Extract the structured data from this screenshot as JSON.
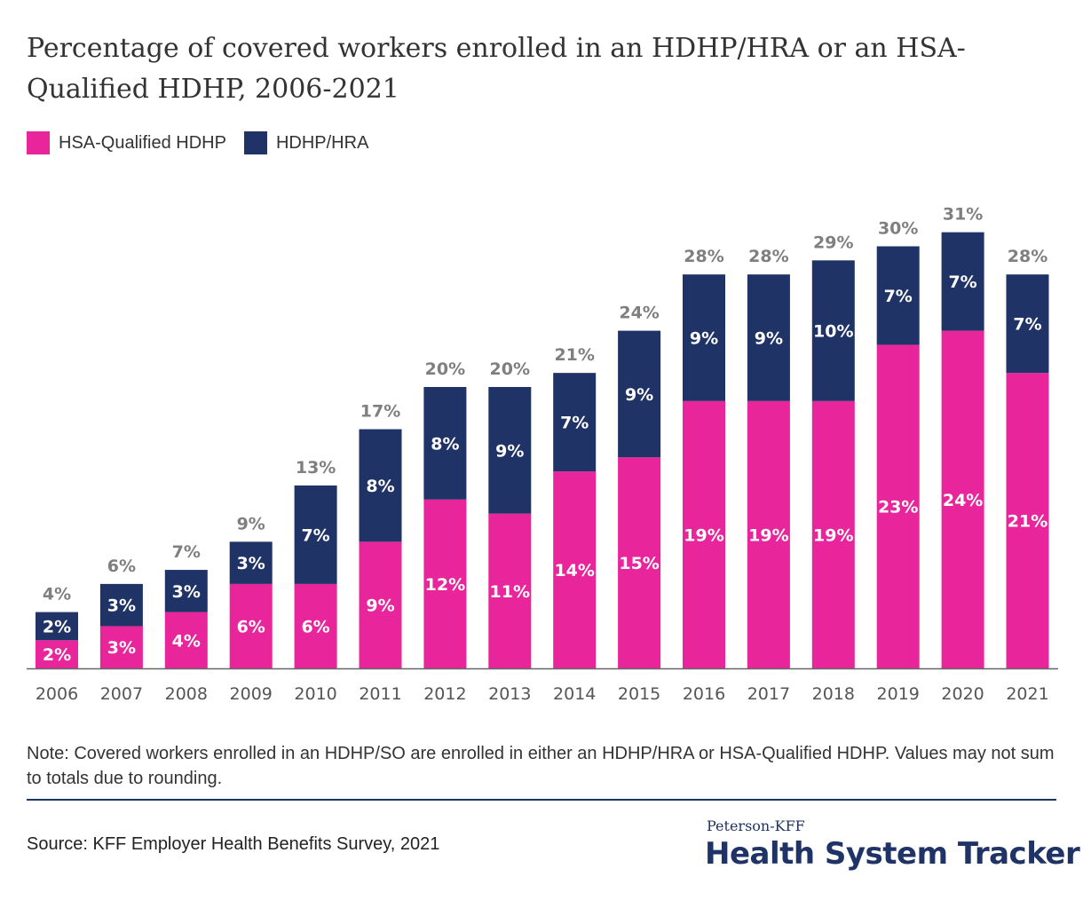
{
  "title": "Percentage of covered workers enrolled in an HDHP/HRA or an HSA-Qualified HDHP, 2006-2021",
  "legend": {
    "items": [
      {
        "label": "HSA-Qualified HDHP",
        "color": "#e8259a"
      },
      {
        "label": "HDHP/HRA",
        "color": "#1f3366"
      }
    ]
  },
  "note": "Note: Covered workers enrolled in an HDHP/SO are enrolled in either an HDHP/HRA or HSA-Qualified HDHP. Values may not sum to totals due to rounding.",
  "source": "Source: KFF Employer Health Benefits Survey, 2021",
  "brand": {
    "top": "Peterson-KFF",
    "main": "Health System Tracker"
  },
  "chart_data": {
    "type": "bar",
    "stacked": true,
    "categories": [
      "2006",
      "2007",
      "2008",
      "2009",
      "2010",
      "2011",
      "2012",
      "2013",
      "2014",
      "2015",
      "2016",
      "2017",
      "2018",
      "2019",
      "2020",
      "2021"
    ],
    "series": [
      {
        "name": "HSA-Qualified HDHP",
        "color": "#e8259a",
        "values": [
          2,
          3,
          4,
          6,
          6,
          9,
          12,
          11,
          14,
          15,
          19,
          19,
          19,
          23,
          24,
          21
        ]
      },
      {
        "name": "HDHP/HRA",
        "color": "#1f3366",
        "values": [
          2,
          3,
          3,
          3,
          7,
          8,
          8,
          9,
          7,
          9,
          9,
          9,
          10,
          7,
          7,
          7
        ]
      }
    ],
    "totals": [
      4,
      6,
      7,
      9,
      13,
      17,
      20,
      20,
      21,
      24,
      28,
      28,
      29,
      30,
      31,
      28
    ],
    "value_suffix": "%",
    "total_label_color": "#7f7f7f",
    "axis_color": "#666666"
  }
}
